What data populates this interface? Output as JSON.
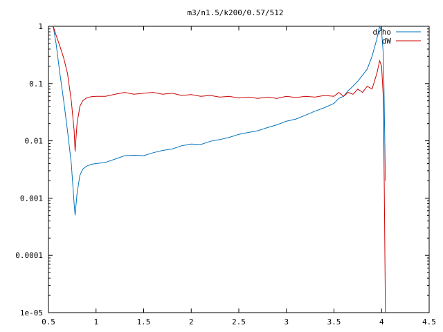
{
  "chart_data": {
    "type": "line",
    "title": "m3/n1.5/k200/0.57/512",
    "xlabel": "",
    "ylabel": "",
    "xlim": [
      0.5,
      4.5
    ],
    "ylim": [
      1e-05,
      1
    ],
    "yscale": "log",
    "grid": false,
    "legend_position": "top-right",
    "x_ticks": [
      {
        "value": 0.5,
        "label": "0.5"
      },
      {
        "value": 1,
        "label": "1"
      },
      {
        "value": 1.5,
        "label": "1.5"
      },
      {
        "value": 2,
        "label": "2"
      },
      {
        "value": 2.5,
        "label": "2.5"
      },
      {
        "value": 3,
        "label": "3"
      },
      {
        "value": 3.5,
        "label": "3.5"
      },
      {
        "value": 4,
        "label": "4"
      },
      {
        "value": 4.5,
        "label": "4.5"
      }
    ],
    "y_ticks": [
      {
        "value": 1,
        "label": "1"
      },
      {
        "value": 0.1,
        "label": "0.1"
      },
      {
        "value": 0.01,
        "label": "0.01"
      },
      {
        "value": 0.001,
        "label": "0.001"
      },
      {
        "value": 0.0001,
        "label": "0.0001"
      },
      {
        "value": 1e-05,
        "label": "1e-05"
      }
    ],
    "series": [
      {
        "name": "drho",
        "color": "#0072bd",
        "x": [
          0.55,
          0.58,
          0.62,
          0.66,
          0.7,
          0.74,
          0.77,
          0.78,
          0.8,
          0.83,
          0.86,
          0.9,
          0.95,
          1.0,
          1.1,
          1.2,
          1.3,
          1.4,
          1.5,
          1.6,
          1.7,
          1.8,
          1.9,
          2.0,
          2.1,
          2.2,
          2.3,
          2.4,
          2.5,
          2.6,
          2.7,
          2.8,
          2.9,
          3.0,
          3.1,
          3.2,
          3.3,
          3.4,
          3.5,
          3.55,
          3.6,
          3.65,
          3.7,
          3.75,
          3.8,
          3.85,
          3.9,
          3.95,
          3.98,
          4.0,
          4.02,
          4.04
        ],
        "y": [
          1.0,
          0.5,
          0.15,
          0.05,
          0.015,
          0.004,
          0.0008,
          0.0005,
          0.0012,
          0.0025,
          0.0032,
          0.0036,
          0.0039,
          0.004,
          0.0042,
          0.0048,
          0.0055,
          0.0056,
          0.0055,
          0.0062,
          0.0068,
          0.0072,
          0.0082,
          0.0088,
          0.0086,
          0.0098,
          0.0105,
          0.0115,
          0.013,
          0.014,
          0.015,
          0.017,
          0.019,
          0.022,
          0.024,
          0.028,
          0.033,
          0.038,
          0.045,
          0.055,
          0.06,
          0.075,
          0.09,
          0.11,
          0.14,
          0.18,
          0.3,
          0.6,
          1.0,
          0.8,
          0.3,
          0.002
        ]
      },
      {
        "name": "dW",
        "color": "#cc0000",
        "x": [
          0.55,
          0.58,
          0.62,
          0.66,
          0.7,
          0.74,
          0.77,
          0.78,
          0.8,
          0.83,
          0.86,
          0.9,
          0.95,
          1.0,
          1.1,
          1.2,
          1.3,
          1.4,
          1.5,
          1.6,
          1.7,
          1.8,
          1.9,
          2.0,
          2.1,
          2.2,
          2.3,
          2.4,
          2.5,
          2.6,
          2.7,
          2.8,
          2.9,
          3.0,
          3.1,
          3.2,
          3.3,
          3.4,
          3.5,
          3.55,
          3.6,
          3.65,
          3.7,
          3.75,
          3.8,
          3.85,
          3.9,
          3.95,
          3.98,
          4.0,
          4.02,
          4.04
        ],
        "y": [
          1.0,
          0.7,
          0.45,
          0.28,
          0.15,
          0.05,
          0.015,
          0.0065,
          0.02,
          0.04,
          0.05,
          0.056,
          0.059,
          0.06,
          0.06,
          0.065,
          0.07,
          0.065,
          0.068,
          0.07,
          0.065,
          0.068,
          0.062,
          0.064,
          0.06,
          0.062,
          0.058,
          0.06,
          0.056,
          0.058,
          0.055,
          0.058,
          0.055,
          0.06,
          0.057,
          0.06,
          0.058,
          0.062,
          0.06,
          0.07,
          0.06,
          0.07,
          0.065,
          0.08,
          0.07,
          0.09,
          0.08,
          0.15,
          0.25,
          0.2,
          0.05,
          1e-05
        ]
      }
    ]
  }
}
